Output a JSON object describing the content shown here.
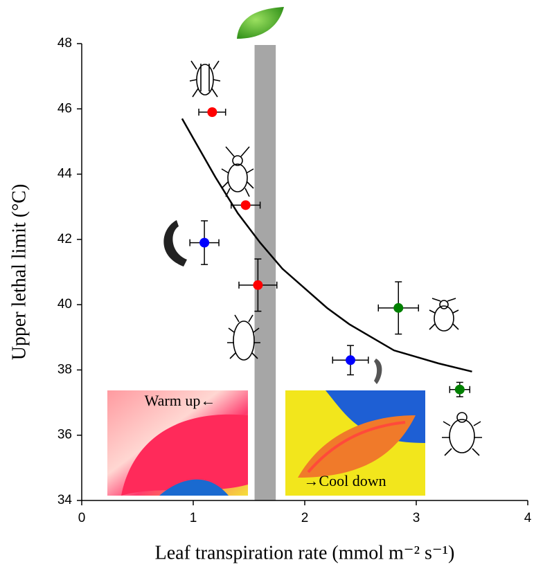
{
  "chart_data": {
    "type": "scatter",
    "x_label": "Leaf transpiration rate (mmol m⁻² s⁻¹)",
    "y_label": "Upper lethal limit (°C)",
    "xlim": [
      0,
      4
    ],
    "xticks": [
      0,
      1,
      2,
      3,
      4
    ],
    "ylim": [
      34,
      48
    ],
    "yticks": [
      34,
      36,
      38,
      40,
      42,
      44,
      46,
      48
    ],
    "series": [
      {
        "color": "#ff0000",
        "x": [
          1.17,
          1.47,
          1.58
        ],
        "values": [
          45.9,
          43.05,
          40.6
        ],
        "xerr": [
          0.12,
          0.13,
          0.17
        ],
        "yerr": [
          null,
          null,
          0.8
        ]
      },
      {
        "color": "#0000ff",
        "x": [
          1.1,
          2.41
        ],
        "values": [
          41.9,
          38.3
        ],
        "xerr": [
          0.13,
          0.16
        ],
        "yerr": [
          0.67,
          0.45
        ]
      },
      {
        "color": "#008000",
        "x": [
          2.84,
          3.39
        ],
        "values": [
          39.9,
          37.4
        ],
        "xerr": [
          0.18,
          0.09
        ],
        "yerr": [
          0.8,
          0.22
        ]
      }
    ],
    "fit": {
      "color": "#000000",
      "x": [
        0.9,
        1.0,
        1.2,
        1.4,
        1.6,
        1.8,
        2.0,
        2.2,
        2.4,
        2.6,
        2.8,
        3.0,
        3.2,
        3.5
      ],
      "values": [
        45.7,
        45.1,
        43.9,
        42.8,
        41.9,
        41.1,
        40.5,
        39.9,
        39.4,
        39.0,
        38.6,
        38.4,
        38.2,
        37.95
      ]
    },
    "band": {
      "x": [
        1.55,
        1.74
      ],
      "color": "#a6a6a6"
    },
    "annotations": [
      "Warm up←",
      "→Cool down"
    ]
  }
}
